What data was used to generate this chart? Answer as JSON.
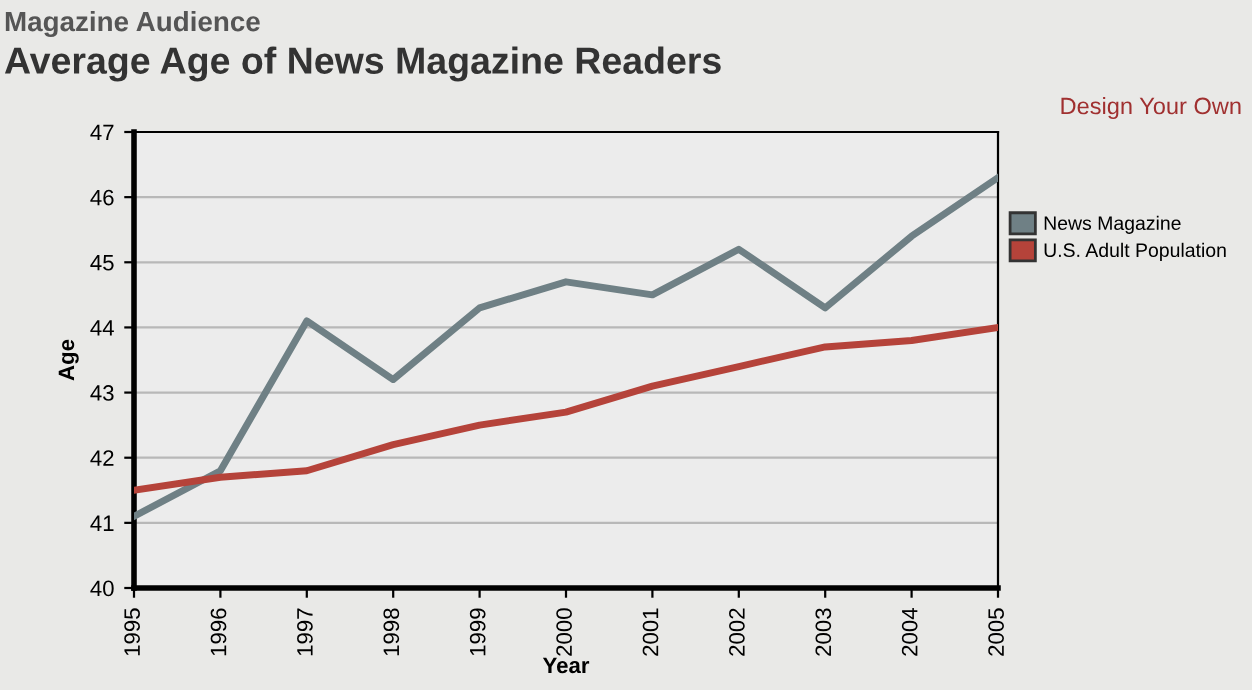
{
  "chart_data": {
    "type": "line",
    "title": "Average Age of News Magazine Readers",
    "subtitle": "Magazine Audience",
    "annotations": [
      "Design Your Own"
    ],
    "xlabel": "Year",
    "ylabel": "Age",
    "x": [
      1995,
      1996,
      1997,
      1998,
      1999,
      2000,
      2001,
      2002,
      2003,
      2004,
      2005
    ],
    "series": [
      {
        "name": "News Magazine",
        "color": "#6f8085",
        "values": [
          41.1,
          41.8,
          44.1,
          43.2,
          44.3,
          44.7,
          44.5,
          45.2,
          44.3,
          45.4,
          46.3
        ]
      },
      {
        "name": "U.S. Adult Population",
        "color": "#b5433a",
        "values": [
          41.5,
          41.7,
          41.8,
          42.2,
          42.5,
          42.7,
          43.1,
          43.4,
          43.7,
          43.8,
          44.0
        ]
      }
    ],
    "xlim": [
      1995,
      2005
    ],
    "xticks": [
      1995,
      1996,
      1997,
      1998,
      1999,
      2000,
      2001,
      2002,
      2003,
      2004,
      2005
    ],
    "ylim": [
      40,
      47
    ],
    "yticks": [
      40,
      41,
      42,
      43,
      44,
      45,
      46,
      47
    ],
    "grid": "y",
    "legend": "right",
    "marker": "none",
    "line_style": "solid"
  }
}
